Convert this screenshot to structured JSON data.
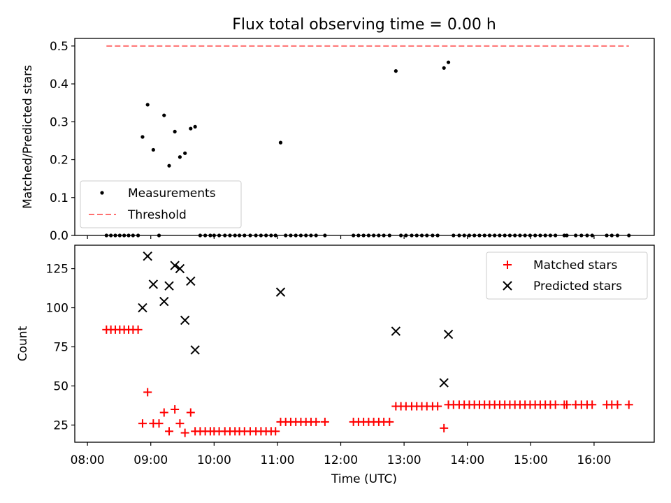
{
  "title": "Flux total observing time = 0.00 h",
  "colors": {
    "measurement": "#000000",
    "threshold": "#ff7070",
    "matched": "#ff0000",
    "predicted": "#000000"
  },
  "chart_data": [
    {
      "type": "scatter",
      "panel": "top",
      "ylabel": "Matched/Predicted stars",
      "xlim": [
        7.8,
        16.95
      ],
      "ylim": [
        0,
        0.52
      ],
      "yticks": [
        0.0,
        0.1,
        0.2,
        0.3,
        0.4,
        0.5
      ],
      "ytick_labels": [
        "0.0",
        "0.1",
        "0.2",
        "0.3",
        "0.4",
        "0.5"
      ],
      "legend": {
        "placement": "lower-left",
        "entries": [
          "Measurements",
          "Threshold"
        ]
      },
      "threshold": {
        "name": "Threshold",
        "value": 0.5,
        "x": [
          8.3,
          16.55
        ]
      },
      "series": [
        {
          "name": "Measurements",
          "marker": "dot",
          "points": [
            [
              8.3,
              0
            ],
            [
              8.37,
              0
            ],
            [
              8.44,
              0
            ],
            [
              8.51,
              0
            ],
            [
              8.58,
              0
            ],
            [
              8.65,
              0
            ],
            [
              8.72,
              0
            ],
            [
              8.8,
              0
            ],
            [
              8.87,
              0.26
            ],
            [
              8.95,
              0.345
            ],
            [
              9.04,
              0.226
            ],
            [
              9.13,
              0
            ],
            [
              9.21,
              0.317
            ],
            [
              9.29,
              0.184
            ],
            [
              9.38,
              0.274
            ],
            [
              9.46,
              0.207
            ],
            [
              9.54,
              0.217
            ],
            [
              9.63,
              0.282
            ],
            [
              9.7,
              0.287
            ],
            [
              9.78,
              0
            ],
            [
              9.86,
              0
            ],
            [
              9.94,
              0
            ],
            [
              10.0,
              0
            ],
            [
              10.08,
              0
            ],
            [
              10.17,
              0
            ],
            [
              10.25,
              0
            ],
            [
              10.33,
              0
            ],
            [
              10.4,
              0
            ],
            [
              10.48,
              0
            ],
            [
              10.57,
              0
            ],
            [
              10.66,
              0
            ],
            [
              10.74,
              0
            ],
            [
              10.82,
              0
            ],
            [
              10.9,
              0
            ],
            [
              10.97,
              0
            ],
            [
              11.05,
              0.245
            ],
            [
              11.13,
              0
            ],
            [
              11.21,
              0
            ],
            [
              11.29,
              0
            ],
            [
              11.37,
              0
            ],
            [
              11.45,
              0
            ],
            [
              11.53,
              0
            ],
            [
              11.61,
              0
            ],
            [
              11.75,
              0
            ],
            [
              12.2,
              0
            ],
            [
              12.28,
              0
            ],
            [
              12.36,
              0
            ],
            [
              12.44,
              0
            ],
            [
              12.52,
              0
            ],
            [
              12.6,
              0
            ],
            [
              12.68,
              0
            ],
            [
              12.77,
              0
            ],
            [
              12.87,
              0.434
            ],
            [
              12.95,
              0
            ],
            [
              13.03,
              0
            ],
            [
              13.12,
              0
            ],
            [
              13.2,
              0
            ],
            [
              13.28,
              0
            ],
            [
              13.36,
              0
            ],
            [
              13.45,
              0
            ],
            [
              13.53,
              0
            ],
            [
              13.63,
              0.442
            ],
            [
              13.7,
              0.457
            ],
            [
              13.78,
              0
            ],
            [
              13.87,
              0
            ],
            [
              13.95,
              0
            ],
            [
              14.03,
              0
            ],
            [
              14.11,
              0
            ],
            [
              14.19,
              0
            ],
            [
              14.27,
              0
            ],
            [
              14.35,
              0
            ],
            [
              14.43,
              0
            ],
            [
              14.51,
              0
            ],
            [
              14.59,
              0
            ],
            [
              14.67,
              0
            ],
            [
              14.75,
              0
            ],
            [
              14.83,
              0
            ],
            [
              14.91,
              0
            ],
            [
              14.99,
              0
            ],
            [
              15.07,
              0
            ],
            [
              15.15,
              0
            ],
            [
              15.23,
              0
            ],
            [
              15.31,
              0
            ],
            [
              15.39,
              0
            ],
            [
              15.53,
              0
            ],
            [
              15.57,
              0
            ],
            [
              15.71,
              0
            ],
            [
              15.8,
              0
            ],
            [
              15.89,
              0
            ],
            [
              15.97,
              0
            ],
            [
              16.2,
              0
            ],
            [
              16.28,
              0
            ],
            [
              16.37,
              0
            ],
            [
              16.55,
              0
            ]
          ]
        }
      ]
    },
    {
      "type": "scatter",
      "panel": "bottom",
      "xlabel": "Time (UTC)",
      "ylabel": "Count",
      "xlim": [
        7.8,
        16.95
      ],
      "ylim": [
        14,
        140
      ],
      "xticks": [
        8,
        9,
        10,
        11,
        12,
        13,
        14,
        15,
        16
      ],
      "xtick_labels": [
        "08:00",
        "09:00",
        "10:00",
        "11:00",
        "12:00",
        "13:00",
        "14:00",
        "15:00",
        "16:00"
      ],
      "yticks": [
        25,
        50,
        75,
        100,
        125
      ],
      "ytick_labels": [
        "25",
        "50",
        "75",
        "100",
        "125"
      ],
      "legend": {
        "placement": "top-right",
        "entries": [
          "Matched stars",
          "Predicted stars"
        ]
      },
      "series": [
        {
          "name": "Matched stars",
          "marker": "plus",
          "points": [
            [
              8.3,
              86
            ],
            [
              8.37,
              86
            ],
            [
              8.44,
              86
            ],
            [
              8.51,
              86
            ],
            [
              8.58,
              86
            ],
            [
              8.65,
              86
            ],
            [
              8.72,
              86
            ],
            [
              8.8,
              86
            ],
            [
              8.87,
              26
            ],
            [
              8.95,
              46
            ],
            [
              9.04,
              26
            ],
            [
              9.13,
              26
            ],
            [
              9.21,
              33
            ],
            [
              9.29,
              21
            ],
            [
              9.38,
              35
            ],
            [
              9.46,
              26
            ],
            [
              9.54,
              20
            ],
            [
              9.63,
              33
            ],
            [
              9.7,
              21
            ],
            [
              9.78,
              21
            ],
            [
              9.86,
              21
            ],
            [
              9.94,
              21
            ],
            [
              10.0,
              21
            ],
            [
              10.08,
              21
            ],
            [
              10.17,
              21
            ],
            [
              10.25,
              21
            ],
            [
              10.33,
              21
            ],
            [
              10.4,
              21
            ],
            [
              10.48,
              21
            ],
            [
              10.57,
              21
            ],
            [
              10.66,
              21
            ],
            [
              10.74,
              21
            ],
            [
              10.82,
              21
            ],
            [
              10.9,
              21
            ],
            [
              10.97,
              21
            ],
            [
              11.05,
              27
            ],
            [
              11.13,
              27
            ],
            [
              11.21,
              27
            ],
            [
              11.29,
              27
            ],
            [
              11.37,
              27
            ],
            [
              11.45,
              27
            ],
            [
              11.53,
              27
            ],
            [
              11.61,
              27
            ],
            [
              11.75,
              27
            ],
            [
              12.2,
              27
            ],
            [
              12.28,
              27
            ],
            [
              12.36,
              27
            ],
            [
              12.44,
              27
            ],
            [
              12.52,
              27
            ],
            [
              12.6,
              27
            ],
            [
              12.68,
              27
            ],
            [
              12.77,
              27
            ],
            [
              12.87,
              37
            ],
            [
              12.95,
              37
            ],
            [
              13.03,
              37
            ],
            [
              13.12,
              37
            ],
            [
              13.2,
              37
            ],
            [
              13.28,
              37
            ],
            [
              13.36,
              37
            ],
            [
              13.45,
              37
            ],
            [
              13.53,
              37
            ],
            [
              13.63,
              23
            ],
            [
              13.7,
              38
            ],
            [
              13.78,
              38
            ],
            [
              13.87,
              38
            ],
            [
              13.95,
              38
            ],
            [
              14.03,
              38
            ],
            [
              14.11,
              38
            ],
            [
              14.19,
              38
            ],
            [
              14.27,
              38
            ],
            [
              14.35,
              38
            ],
            [
              14.43,
              38
            ],
            [
              14.51,
              38
            ],
            [
              14.59,
              38
            ],
            [
              14.67,
              38
            ],
            [
              14.75,
              38
            ],
            [
              14.83,
              38
            ],
            [
              14.91,
              38
            ],
            [
              14.99,
              38
            ],
            [
              15.07,
              38
            ],
            [
              15.15,
              38
            ],
            [
              15.23,
              38
            ],
            [
              15.31,
              38
            ],
            [
              15.39,
              38
            ],
            [
              15.53,
              38
            ],
            [
              15.57,
              38
            ],
            [
              15.71,
              38
            ],
            [
              15.8,
              38
            ],
            [
              15.89,
              38
            ],
            [
              15.97,
              38
            ],
            [
              16.2,
              38
            ],
            [
              16.28,
              38
            ],
            [
              16.37,
              38
            ],
            [
              16.55,
              38
            ]
          ]
        },
        {
          "name": "Predicted stars",
          "marker": "x",
          "points": [
            [
              8.87,
              100
            ],
            [
              8.95,
              133
            ],
            [
              9.04,
              115
            ],
            [
              9.21,
              104
            ],
            [
              9.29,
              114
            ],
            [
              9.38,
              127
            ],
            [
              9.46,
              125
            ],
            [
              9.54,
              92
            ],
            [
              9.63,
              117
            ],
            [
              9.7,
              73
            ],
            [
              11.05,
              110
            ],
            [
              12.87,
              85
            ],
            [
              13.63,
              52
            ],
            [
              13.7,
              83
            ]
          ]
        }
      ]
    }
  ]
}
